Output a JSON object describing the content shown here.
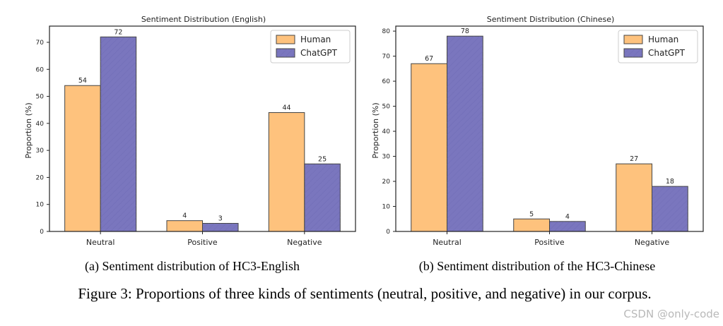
{
  "chart_data": [
    {
      "type": "bar",
      "title": "Sentiment Distribution (English)",
      "xlabel": "",
      "ylabel": "Proportion (%)",
      "categories": [
        "Neutral",
        "Positive",
        "Negative"
      ],
      "series": [
        {
          "name": "Human",
          "values": [
            54,
            4,
            44
          ],
          "color": "#fec27d"
        },
        {
          "name": "ChatGPT",
          "values": [
            72,
            3,
            25
          ],
          "color": "#7a76be"
        }
      ],
      "ylim": [
        0,
        76
      ],
      "yticks": [
        0,
        10,
        20,
        30,
        40,
        50,
        60,
        70
      ],
      "legend_position": "top-right",
      "caption": "(a) Sentiment distribution of HC3-English"
    },
    {
      "type": "bar",
      "title": "Sentiment Distribution (Chinese)",
      "xlabel": "",
      "ylabel": "Proportion (%)",
      "categories": [
        "Neutral",
        "Positive",
        "Negative"
      ],
      "series": [
        {
          "name": "Human",
          "values": [
            67,
            5,
            27
          ],
          "color": "#fec27d"
        },
        {
          "name": "ChatGPT",
          "values": [
            78,
            4,
            18
          ],
          "color": "#7a76be"
        }
      ],
      "ylim": [
        0,
        82
      ],
      "yticks": [
        0,
        10,
        20,
        30,
        40,
        50,
        60,
        70,
        80
      ],
      "legend_position": "top-right",
      "caption": "(b) Sentiment distribution of the HC3-Chinese"
    }
  ],
  "figure_caption": "Figure 3: Proportions of three kinds of sentiments (neutral, positive, and negative) in our corpus.",
  "watermark": "CSDN @only-code",
  "colors": {
    "axis": "#222222",
    "bar_edge": "#444444",
    "human": "#fec27d",
    "chatgpt": "#7a76be"
  }
}
